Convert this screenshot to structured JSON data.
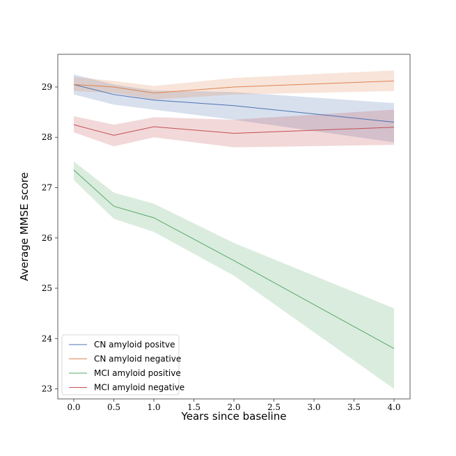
{
  "chart_data": {
    "type": "line",
    "xlabel": "Years since baseline",
    "ylabel": "Average MMSE score",
    "xlim": [
      -0.2,
      4.2
    ],
    "ylim": [
      22.8,
      29.65
    ],
    "xticks": [
      "0.0",
      "0.5",
      "1.0",
      "1.5",
      "2.0",
      "2.5",
      "3.0",
      "3.5",
      "4.0"
    ],
    "yticks": [
      "23",
      "24",
      "25",
      "26",
      "27",
      "28",
      "29"
    ],
    "legend_position": "lower-left",
    "grid": false,
    "series": [
      {
        "name": "CN amyloid positve",
        "color": "#4c72b0",
        "x": [
          0,
          0.5,
          1,
          2,
          4
        ],
        "y": [
          29.05,
          28.85,
          28.74,
          28.63,
          28.3
        ],
        "lower": [
          28.85,
          28.65,
          28.55,
          28.35,
          27.9
        ],
        "upper": [
          29.25,
          29.05,
          28.93,
          28.9,
          28.68
        ]
      },
      {
        "name": "CN amyloid negative",
        "color": "#dd8452",
        "x": [
          0,
          0.5,
          1,
          2,
          4
        ],
        "y": [
          29.05,
          29.0,
          28.88,
          29.0,
          29.12
        ],
        "lower": [
          28.92,
          28.88,
          28.75,
          28.85,
          28.92
        ],
        "upper": [
          29.2,
          29.12,
          29.02,
          29.18,
          29.33
        ]
      },
      {
        "name": "MCI amyloid positive",
        "color": "#55a868",
        "x": [
          0,
          0.5,
          1,
          2,
          4
        ],
        "y": [
          27.35,
          26.63,
          26.4,
          25.55,
          23.8
        ],
        "lower": [
          27.15,
          26.38,
          26.12,
          25.25,
          23.0
        ],
        "upper": [
          27.52,
          26.9,
          26.68,
          25.9,
          24.6
        ]
      },
      {
        "name": "MCI amyloid negative",
        "color": "#c44e52",
        "x": [
          0,
          0.5,
          1,
          2,
          4
        ],
        "y": [
          28.25,
          28.04,
          28.21,
          28.08,
          28.2
        ],
        "lower": [
          28.1,
          27.82,
          28.0,
          27.8,
          27.85
        ],
        "upper": [
          28.42,
          28.25,
          28.4,
          28.35,
          28.55
        ]
      }
    ]
  }
}
